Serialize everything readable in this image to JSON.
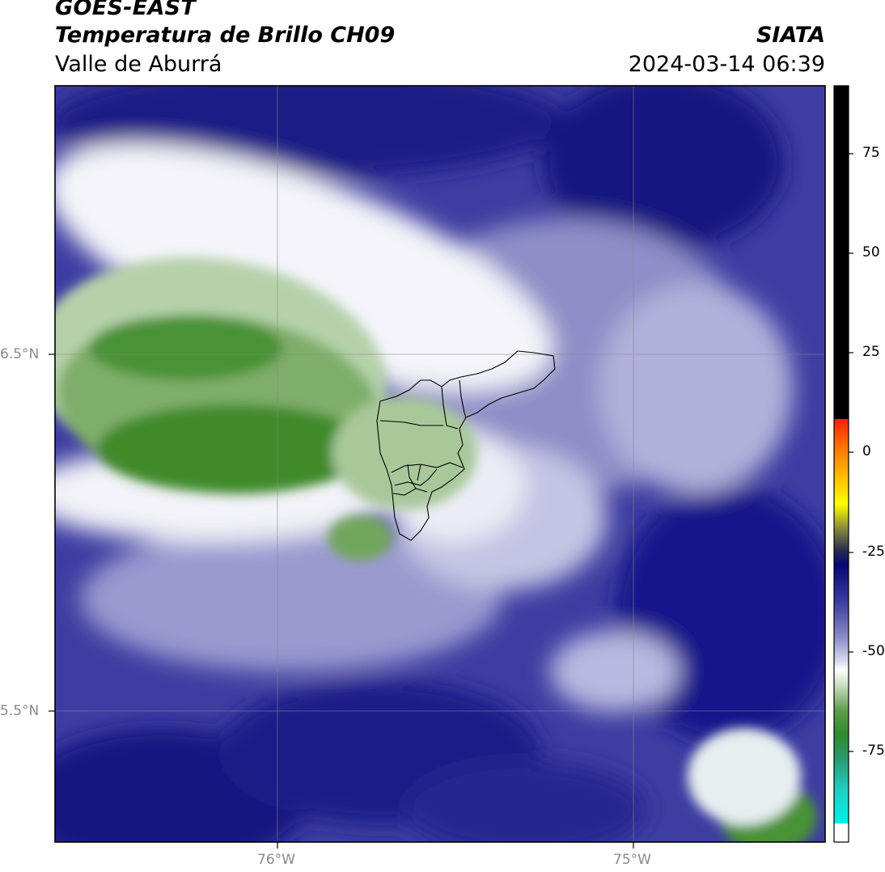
{
  "header": {
    "source": "GOES-EAST",
    "product": "Temperatura de Brillo CH09",
    "region": "Valle de Aburrá",
    "brand": "SIATA",
    "timestamp": "2024-03-14 06:39"
  },
  "map": {
    "lat_ticks": [
      {
        "value": 6.5,
        "label": "6.5°N"
      },
      {
        "value": 5.5,
        "label": "5.5°N"
      }
    ],
    "lon_ticks": [
      {
        "value": -76.0,
        "label": "76°W"
      },
      {
        "value": -75.0,
        "label": "75°W"
      }
    ],
    "gridlines": true
  },
  "colorbar": {
    "ticks": [
      {
        "value": 75,
        "label": "75"
      },
      {
        "value": 50,
        "label": "50"
      },
      {
        "value": 25,
        "label": "25"
      },
      {
        "value": 0,
        "label": "0"
      },
      {
        "value": -25,
        "label": "-25"
      },
      {
        "value": -50,
        "label": "-50"
      },
      {
        "value": -75,
        "label": "-75"
      }
    ],
    "colors": {
      "black_segment": "#000000",
      "red": "#ff2a00",
      "orange": "#ff8c00",
      "yellow": "#ffff00",
      "olive": "#5a5a2a",
      "navy": "#0a0a6e",
      "lavender": "#a9a9d6",
      "white": "#ffffff",
      "green": "#3b8a2e",
      "cyan": "#00e8d8"
    }
  }
}
